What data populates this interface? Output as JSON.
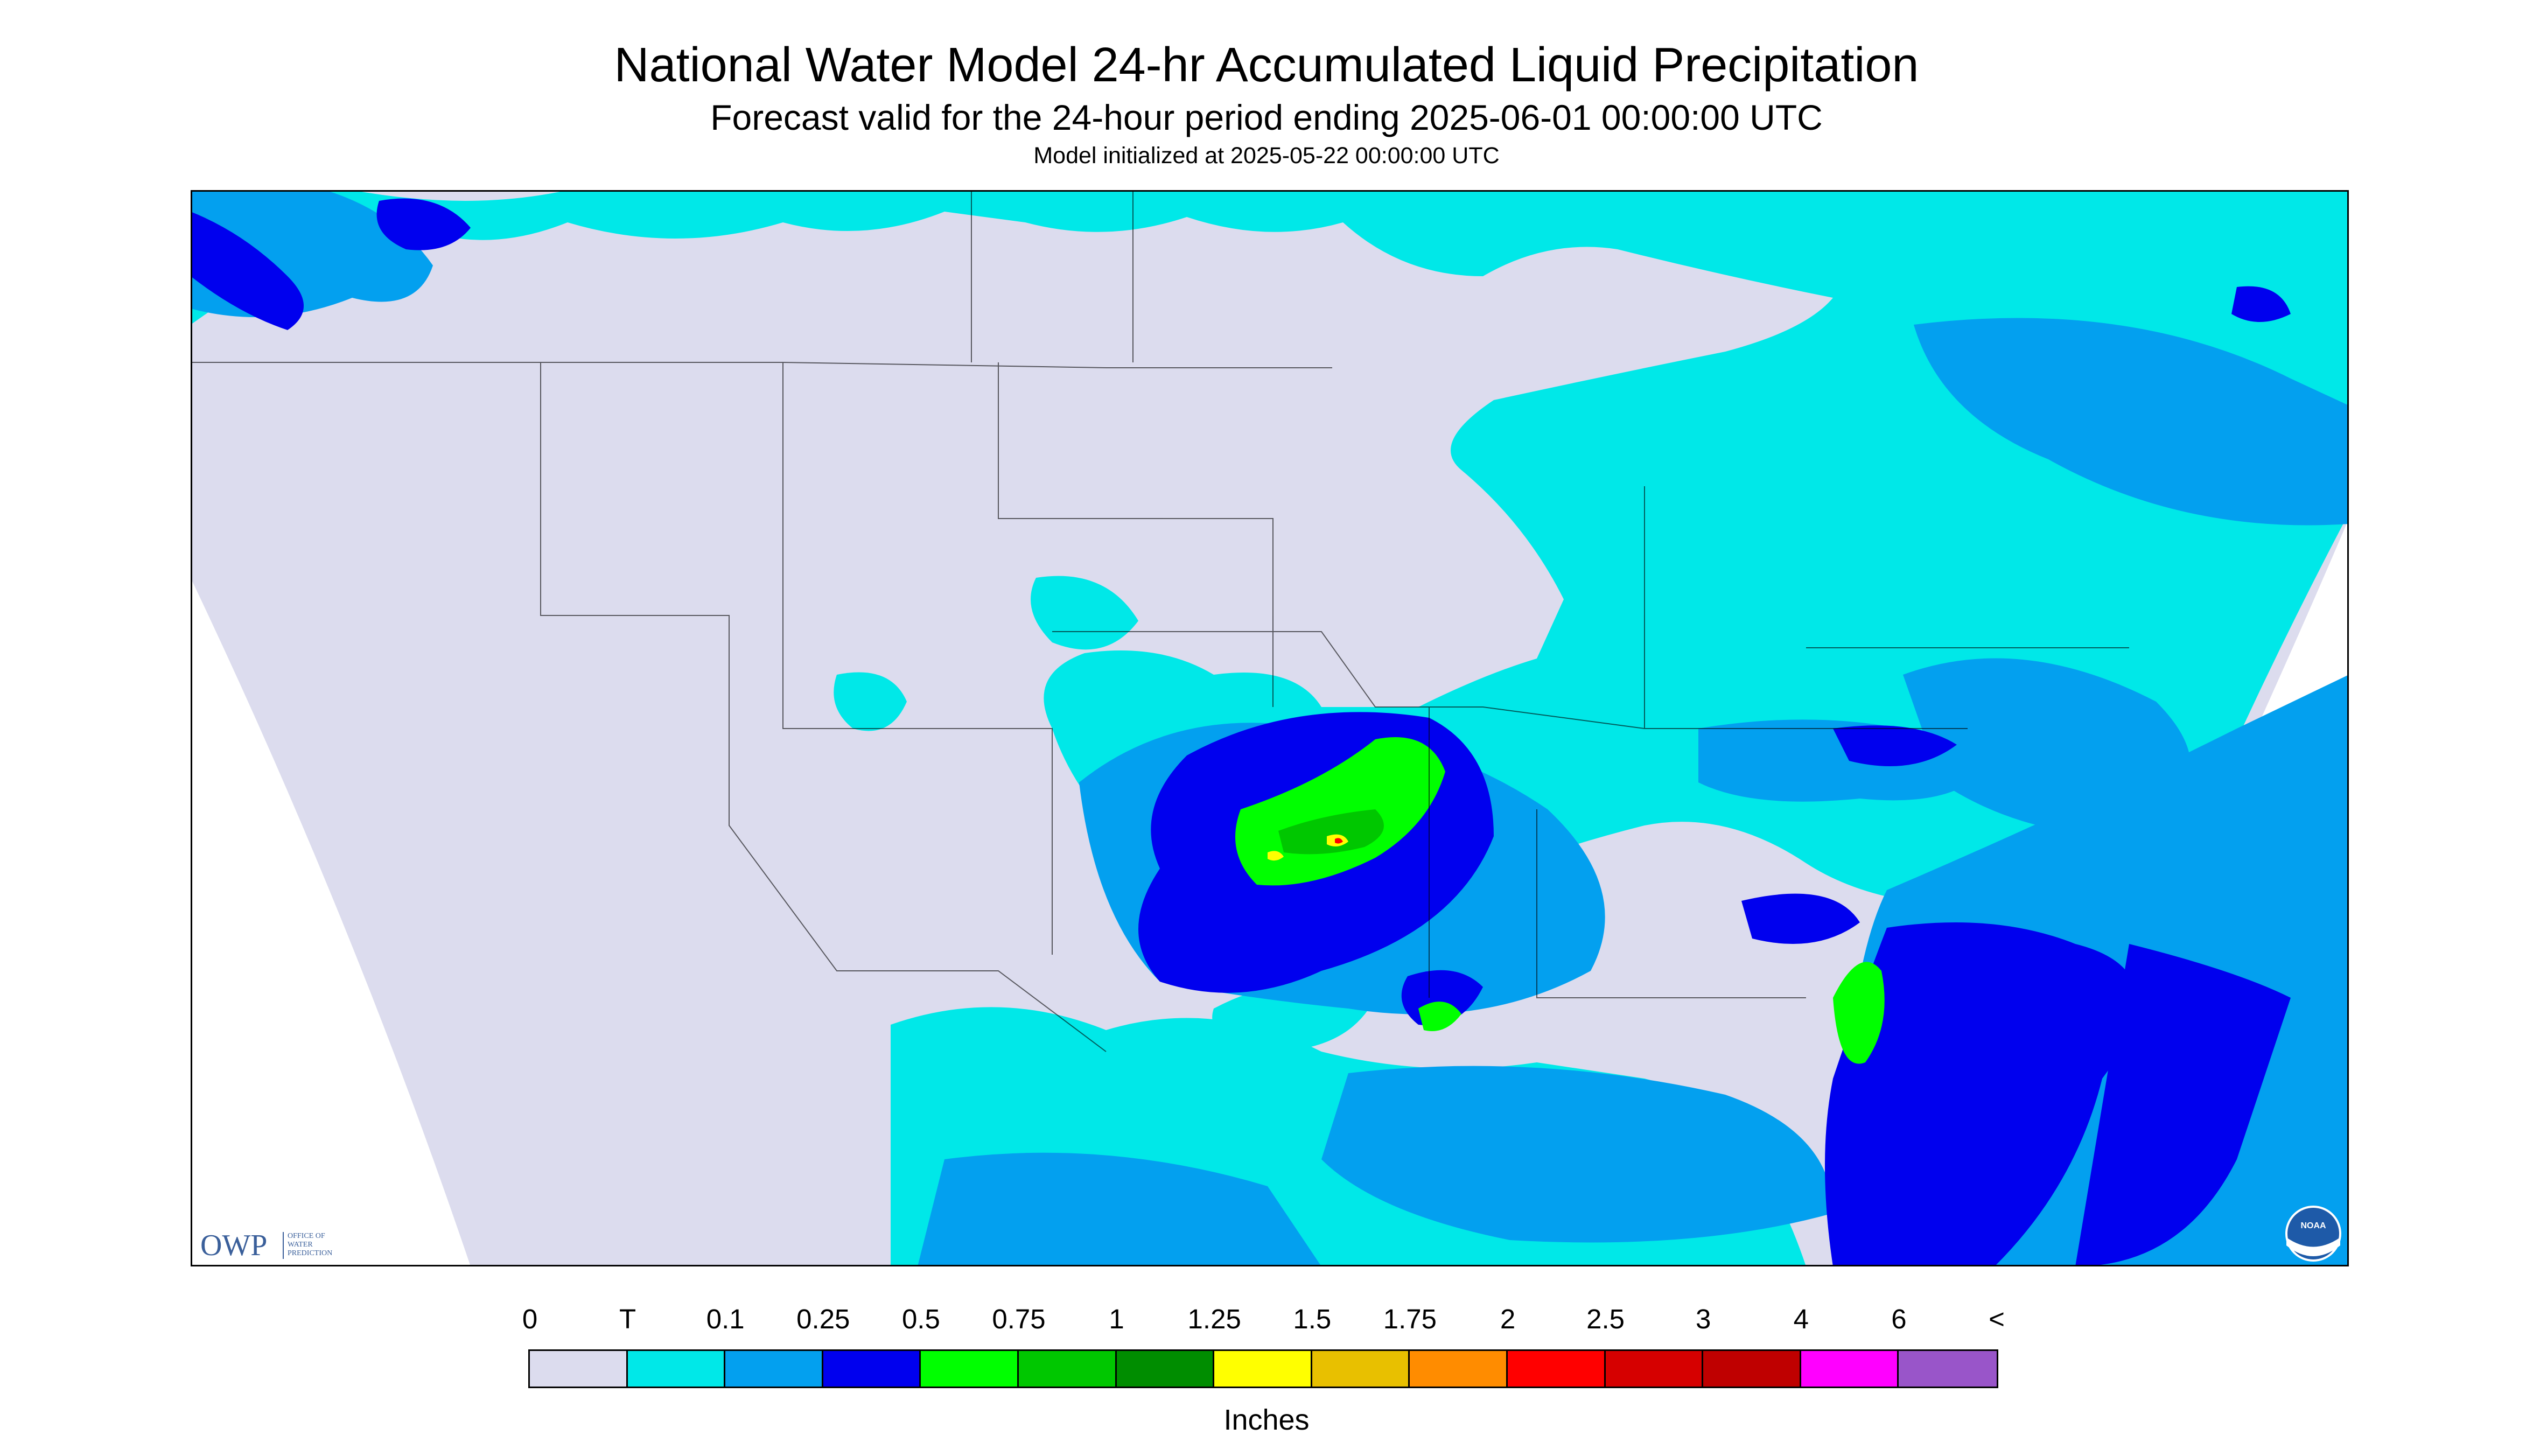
{
  "header": {
    "title": "National Water Model 24-hr Accumulated Liquid Precipitation",
    "subtitle": "Forecast valid for the 24-hour period ending 2025-06-01 00:00:00 UTC",
    "init": "Model initialized at 2025-05-22 00:00:00 UTC"
  },
  "logos": {
    "owp": {
      "mark": "OWP",
      "lines": [
        "OFFICE OF",
        "WATER",
        "PREDICTION"
      ]
    },
    "noaa": {
      "mark": "NOAA"
    }
  },
  "legend": {
    "labels": [
      "0",
      "T",
      "0.1",
      "0.25",
      "0.5",
      "0.75",
      "1",
      "1.25",
      "1.5",
      "1.75",
      "2",
      "2.5",
      "3",
      "4",
      "6",
      "<"
    ],
    "colors": [
      "#dcdcee",
      "#00e8e8",
      "#03a0ef",
      "#0000ee",
      "#00ff00",
      "#00c700",
      "#008d00",
      "#ffff00",
      "#e8c000",
      "#ff8c00",
      "#ff0000",
      "#d60000",
      "#bf0000",
      "#ff00ff",
      "#9955c9"
    ],
    "units": "Inches"
  },
  "map_colors": {
    "background": "#dcdcee",
    "outside": "#ffffff",
    "border": "#000000"
  }
}
